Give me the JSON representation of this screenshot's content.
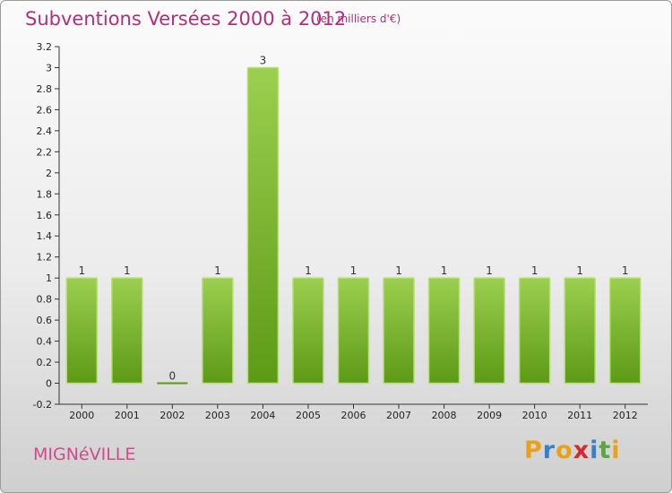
{
  "page": {
    "title": "Subventions Versées 2000 à 2012",
    "subtitle": "(en milliers d'€)",
    "commune": "MIGNéVILLE",
    "logo_text": "Proxiti",
    "logo_letters": [
      {
        "ch": "P",
        "color": "#e6a21c"
      },
      {
        "ch": "r",
        "color": "#3b7fc4"
      },
      {
        "ch": "o",
        "color": "#e6a21c"
      },
      {
        "ch": "x",
        "color": "#d7282f"
      },
      {
        "ch": "i",
        "color": "#3b7fc4"
      },
      {
        "ch": "t",
        "color": "#58a83a"
      },
      {
        "ch": "i",
        "color": "#e6a21c"
      }
    ]
  },
  "colors": {
    "title": "#b0307a",
    "bar_top": "#9ccf4f",
    "bar_bottom": "#5c9a16",
    "axis": "#333333"
  },
  "chart_data": {
    "type": "bar",
    "title": "Subventions Versées 2000 à 2012",
    "subtitle": "(en milliers d'€)",
    "categories": [
      "2000",
      "2001",
      "2002",
      "2003",
      "2004",
      "2005",
      "2006",
      "2007",
      "2008",
      "2009",
      "2010",
      "2011",
      "2012"
    ],
    "values": [
      1,
      1,
      0,
      1,
      3,
      1,
      1,
      1,
      1,
      1,
      1,
      1,
      1
    ],
    "data_labels": [
      "1",
      "1",
      "0",
      "1",
      "3",
      "1",
      "1",
      "1",
      "1",
      "1",
      "1",
      "1",
      "1"
    ],
    "ylim": [
      -0.2,
      3.2
    ],
    "yticks": [
      -0.2,
      0,
      0.2,
      0.4,
      0.6,
      0.8,
      1,
      1.2,
      1.4,
      1.6,
      1.8,
      2,
      2.2,
      2.4,
      2.6,
      2.8,
      3,
      3.2
    ],
    "ytick_labels": [
      "-0.2",
      "0",
      "0.2",
      "0.4",
      "0.6",
      "0.8",
      "1",
      "1.2",
      "1.4",
      "1.6",
      "1.8",
      "2",
      "2.2",
      "2.4",
      "2.6",
      "2.8",
      "3",
      "3.2"
    ],
    "grid": false,
    "legend": "none",
    "xlabel": "",
    "ylabel": ""
  }
}
